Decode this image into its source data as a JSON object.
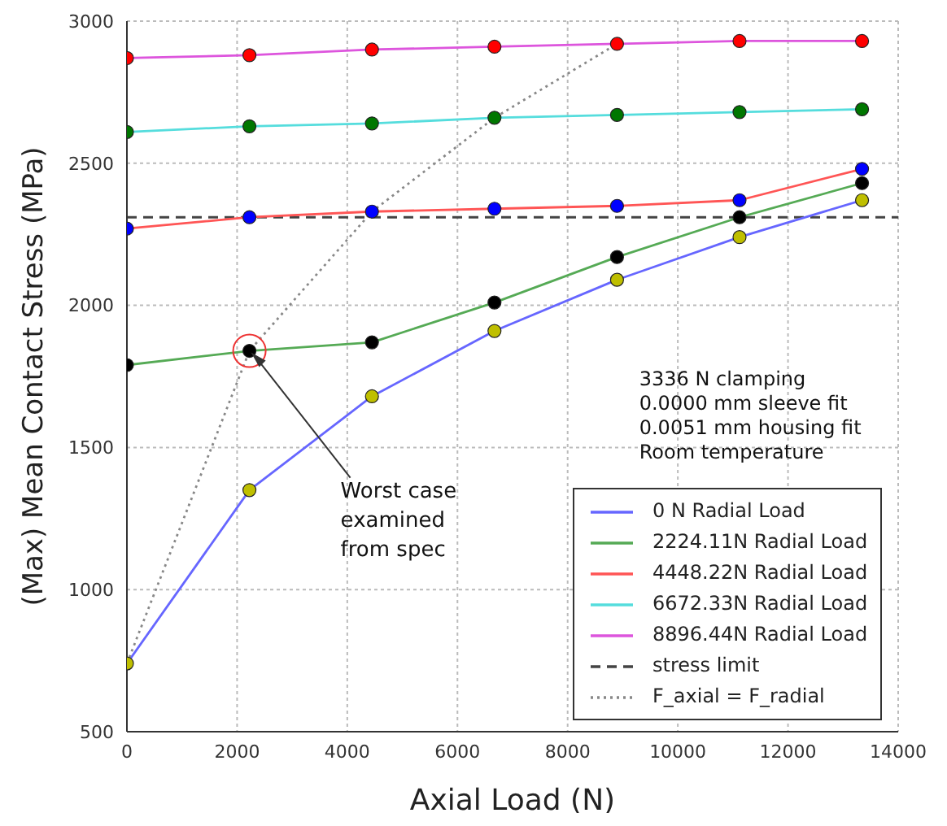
{
  "chart_data": {
    "type": "line",
    "xlabel": "Axial Load (N)",
    "ylabel": "(Max) Mean Contact Stress (MPa)",
    "x": [
      0,
      2224,
      4448,
      6672,
      8896,
      11120,
      13344
    ],
    "series": [
      {
        "name": "0 N Radial Load",
        "color": "#6666ff",
        "colors": [
          "#bfbf00",
          "#bfbf00",
          "#bfbf00",
          "#bfbf00",
          "#bfbf00",
          "#bfbf00",
          "#bfbf00"
        ],
        "values": [
          740,
          1350,
          1680,
          1910,
          2090,
          2240,
          2370
        ]
      },
      {
        "name": "2224.11N Radial Load",
        "color": "#55aa55",
        "colors": [
          "#000000",
          "#000000",
          "#000000",
          "#000000",
          "#000000",
          "#000000",
          "#000000"
        ],
        "values": [
          1790,
          1840,
          1870,
          2010,
          2170,
          2310,
          2430
        ]
      },
      {
        "name": "4448.22N Radial Load",
        "color": "#ff5555",
        "colors": [
          "#0000ff",
          "#0000ff",
          "#0000ff",
          "#0000ff",
          "#0000ff",
          "#0000ff",
          "#0000ff"
        ],
        "values": [
          2270,
          2310,
          2330,
          2340,
          2350,
          2370,
          2480
        ]
      },
      {
        "name": "6672.33N Radial Load",
        "color": "#55dddd",
        "colors": [
          "#007700",
          "#007700",
          "#007700",
          "#007700",
          "#007700",
          "#007700",
          "#007700"
        ],
        "values": [
          2610,
          2630,
          2640,
          2660,
          2670,
          2680,
          2690
        ]
      },
      {
        "name": "8896.44N Radial Load",
        "color": "#dd55dd",
        "colors": [
          "#ff0000",
          "#ff0000",
          "#ff0000",
          "#ff0000",
          "#ff0000",
          "#ff0000",
          "#ff0000"
        ],
        "values": [
          2870,
          2880,
          2900,
          2910,
          2920,
          2930,
          2930
        ]
      },
      {
        "name": "F_axial = F_radial",
        "type": "line",
        "color": "#888888",
        "x": [
          0,
          2224,
          4448,
          6672,
          8896
        ],
        "values": [
          740,
          1840,
          2330,
          2660,
          2920
        ],
        "marker": "none",
        "line_style": "dotted"
      }
    ],
    "ref_lines": [
      {
        "axis": "y",
        "value": 2310,
        "label": "stress limit",
        "color": "#444444",
        "line_style": "dashed"
      }
    ],
    "annotations": [
      "3336 N clamping",
      "0.0000 mm sleeve fit",
      "0.0051 mm housing fit",
      "Room temperature",
      {
        "text": "Worst case examined from spec",
        "x": 2224,
        "y": 1840
      }
    ],
    "xlim": [
      0,
      14000
    ],
    "xticks": [
      0,
      2000,
      4000,
      6000,
      8000,
      10000,
      12000,
      14000
    ],
    "ylim": [
      500,
      3000
    ],
    "yticks": [
      500,
      1000,
      1500,
      2000,
      2500,
      3000
    ],
    "grid": true,
    "legend": "bottom right",
    "marker": "circle",
    "line_style": "solid"
  }
}
